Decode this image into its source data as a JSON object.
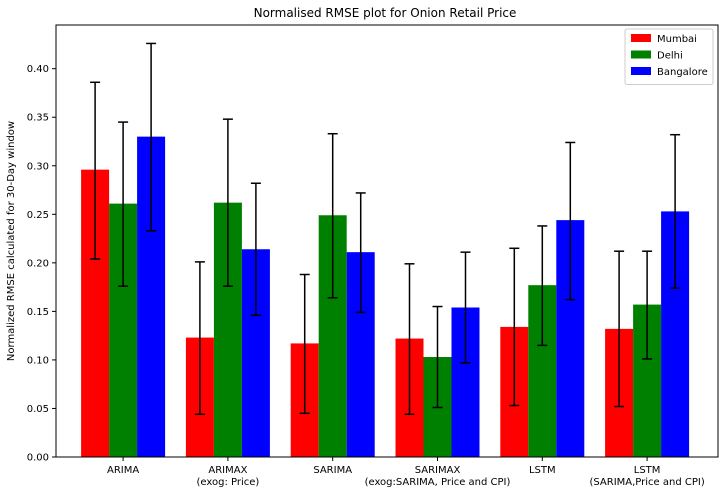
{
  "chart_data": {
    "type": "bar",
    "title": "Normalised RMSE plot for Onion Retail Price",
    "xlabel": "",
    "ylabel": "Normalized RMSE calculated for 30-Day window",
    "categories": [
      [
        "ARIMA"
      ],
      [
        "ARIMAX",
        "(exog: Price)"
      ],
      [
        "SARIMA"
      ],
      [
        "SARIMAX",
        "(exog:SARIMA, Price and CPI)"
      ],
      [
        "LSTM"
      ],
      [
        "LSTM",
        "(SARIMA,Price and CPI)"
      ]
    ],
    "series": [
      {
        "name": "Mumbai",
        "color": "#ff0000",
        "values": [
          0.296,
          0.123,
          0.117,
          0.122,
          0.134,
          0.132
        ],
        "err_low": [
          0.204,
          0.044,
          0.045,
          0.044,
          0.053,
          0.052
        ],
        "err_high": [
          0.386,
          0.201,
          0.188,
          0.199,
          0.215,
          0.212
        ]
      },
      {
        "name": "Delhi",
        "color": "#008000",
        "values": [
          0.261,
          0.262,
          0.249,
          0.103,
          0.177,
          0.157
        ],
        "err_low": [
          0.176,
          0.176,
          0.164,
          0.051,
          0.115,
          0.101
        ],
        "err_high": [
          0.345,
          0.348,
          0.333,
          0.155,
          0.238,
          0.212
        ]
      },
      {
        "name": "Bangalore",
        "color": "#0000ff",
        "values": [
          0.33,
          0.214,
          0.211,
          0.154,
          0.244,
          0.253
        ],
        "err_low": [
          0.233,
          0.146,
          0.149,
          0.097,
          0.162,
          0.174
        ],
        "err_high": [
          0.426,
          0.282,
          0.272,
          0.211,
          0.324,
          0.332
        ]
      }
    ],
    "ylim": [
      0,
      0.445
    ],
    "yticks": [
      "0.00",
      "0.05",
      "0.10",
      "0.15",
      "0.20",
      "0.25",
      "0.30",
      "0.35",
      "0.40"
    ],
    "legend_position": "top-right",
    "grid": false
  }
}
